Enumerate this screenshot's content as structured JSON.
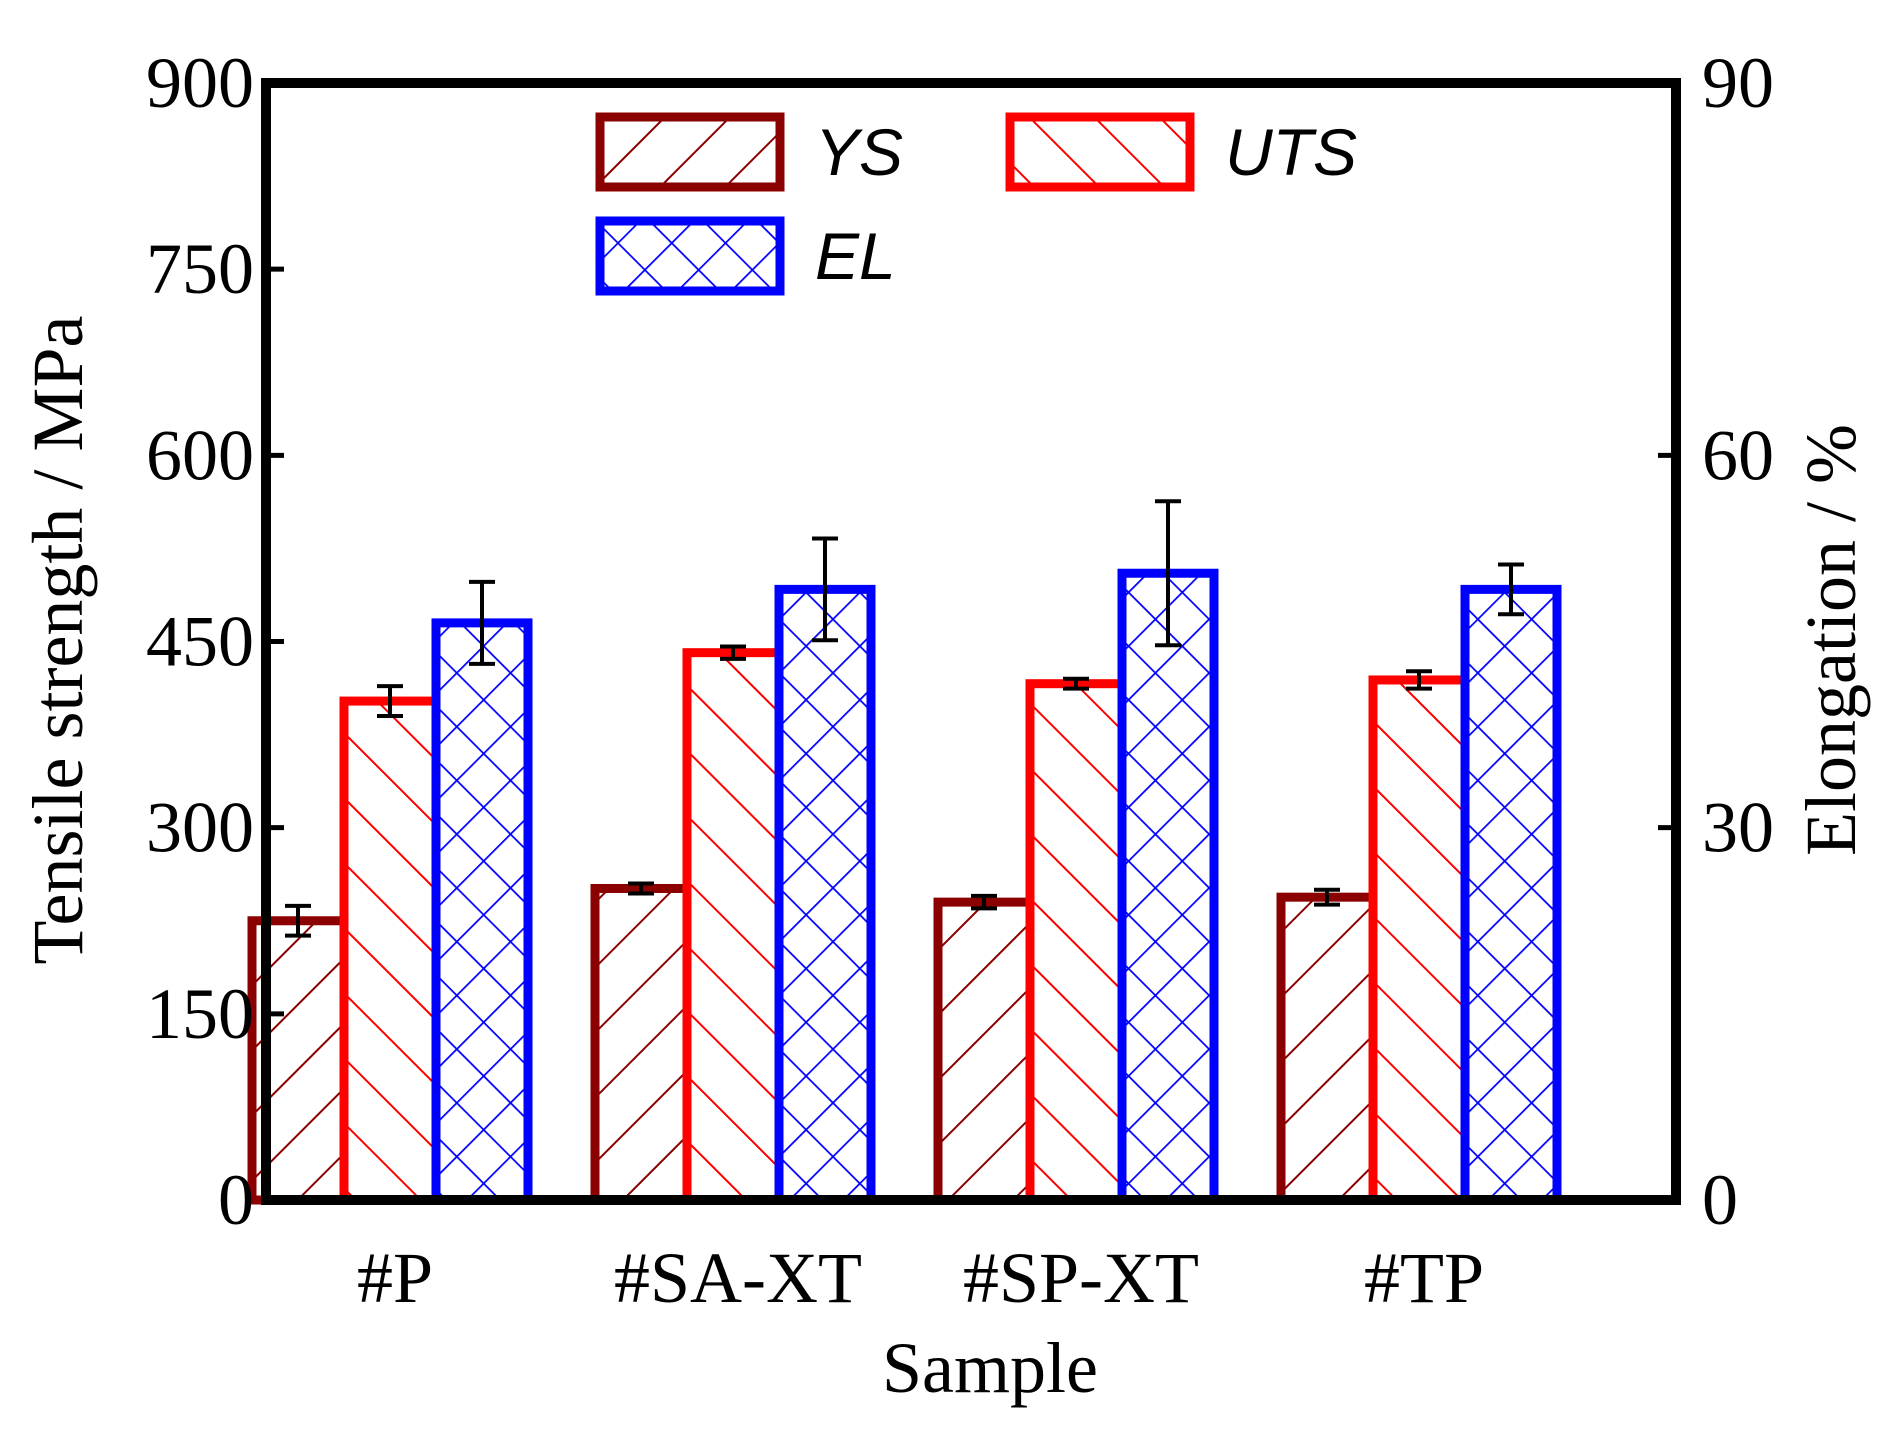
{
  "chart_data": {
    "type": "bar",
    "categories": [
      "#P",
      "#SA-XT",
      "#SP-XT",
      "#TP"
    ],
    "xlabel": "Sample",
    "ylabel_left": "Tensile strength / MPa",
    "ylabel_right": "Elongation / %",
    "ylim_left": [
      0,
      900
    ],
    "ylim_right": [
      0,
      90
    ],
    "yticks_left": [
      "0",
      "150",
      "300",
      "450",
      "600",
      "750",
      "900"
    ],
    "yticks_right": [
      "0",
      "30",
      "60",
      "90"
    ],
    "legend_position": "top",
    "series": [
      {
        "name": "YS",
        "axis": "left",
        "values": [
          225,
          251,
          240,
          244
        ],
        "errors": [
          12,
          4,
          5,
          6
        ],
        "color": "#8b0000",
        "pattern": "forward-hatch"
      },
      {
        "name": "UTS",
        "axis": "left",
        "values": [
          402,
          441,
          416,
          419
        ],
        "errors": [
          12,
          5,
          4,
          7
        ],
        "color": "#ff0000",
        "pattern": "back-hatch"
      },
      {
        "name": "EL",
        "axis": "right",
        "values": [
          46.5,
          49.2,
          50.5,
          49.2
        ],
        "errors": [
          3.3,
          4.1,
          5.8,
          2.0
        ],
        "color": "#0000ff",
        "pattern": "cross-hatch"
      }
    ]
  }
}
